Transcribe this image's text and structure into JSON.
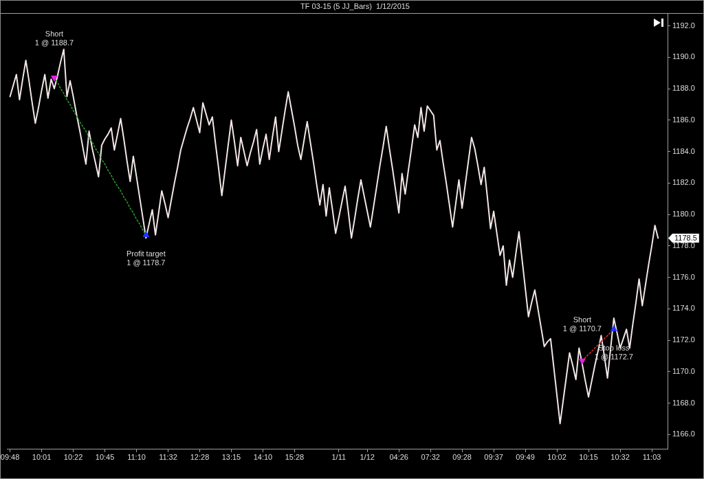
{
  "chart_data": {
    "type": "line",
    "title": "TF 03-15 (5 JJ_Bars)  1/12/2015",
    "categories": [
      null,
      "09:48",
      null,
      null,
      null,
      null,
      null,
      null,
      null,
      null,
      null,
      "10:01",
      null,
      null,
      null,
      null,
      null,
      null,
      null,
      null,
      null,
      "10:22",
      null,
      null,
      null,
      null,
      null,
      null,
      null,
      null,
      null,
      "10:45",
      null,
      null,
      null,
      null,
      null,
      null,
      null,
      null,
      null,
      "11:10",
      null,
      null,
      null,
      null,
      null,
      null,
      null,
      null,
      null,
      "11:32",
      null,
      null,
      null,
      null,
      null,
      null,
      null,
      null,
      null,
      "12:28",
      null,
      null,
      null,
      null,
      null,
      null,
      null,
      null,
      null,
      "13:15",
      null,
      null,
      null,
      null,
      null,
      null,
      null,
      null,
      null,
      "14:10",
      null,
      null,
      null,
      null,
      null,
      null,
      null,
      null,
      null,
      "15:28",
      null,
      null,
      null,
      null,
      null,
      null,
      null,
      null,
      null,
      null,
      null,
      null,
      null,
      "1/11",
      null,
      null,
      null,
      null,
      null,
      null,
      null,
      null,
      "1/12",
      null,
      null,
      null,
      null,
      null,
      null,
      null,
      null,
      null,
      "04:26",
      null,
      null,
      null,
      null,
      null,
      null,
      null,
      null,
      null,
      "07:32",
      null,
      null,
      null,
      null,
      null,
      null,
      null,
      null,
      null,
      "09:28",
      null,
      null,
      null,
      null,
      null,
      null,
      null,
      null,
      null,
      "09:37",
      null,
      null,
      null,
      null,
      null,
      null,
      null,
      null,
      null,
      "09:49",
      null,
      null,
      null,
      null,
      null,
      null,
      null,
      null,
      null,
      "10:02",
      null,
      null,
      null,
      null,
      null,
      null,
      null,
      null,
      null,
      "10:15",
      null,
      null,
      null,
      null,
      null,
      null,
      null,
      null,
      null,
      "10:32",
      null,
      null,
      null,
      null,
      null,
      null,
      null,
      null,
      null,
      "11:03",
      null,
      null,
      null,
      null,
      null
    ],
    "ylim": [
      1165.1,
      1192.8
    ],
    "yticks": [
      {
        "value": 1166,
        "label": "1166.0"
      },
      {
        "value": 1168,
        "label": "1168.0"
      },
      {
        "value": 1170,
        "label": "1170.0"
      },
      {
        "value": 1172,
        "label": "1172.0"
      },
      {
        "value": 1174,
        "label": "1174.0"
      },
      {
        "value": 1176,
        "label": "1176.0"
      },
      {
        "value": 1178,
        "label": "1178.0"
      },
      {
        "value": 1180,
        "label": "1180.0"
      },
      {
        "value": 1182,
        "label": "1182.0"
      },
      {
        "value": 1184,
        "label": "1184.0"
      },
      {
        "value": 1186,
        "label": "1186.0"
      },
      {
        "value": 1188,
        "label": "1188.0"
      },
      {
        "value": 1190,
        "label": "1190.0"
      },
      {
        "value": 1192,
        "label": "1192.0"
      }
    ],
    "grid": false,
    "legend": false,
    "series": [
      {
        "color": "#f3e6e6",
        "marker": "none",
        "values": [
          null,
          1187.5,
          1188.2,
          1188.9,
          1187.3,
          1188.6,
          1189.8,
          1188.5,
          1187.1,
          1185.8,
          1186.8,
          1187.9,
          1188.9,
          1187.4,
          1188.6,
          1188.0,
          1188.8,
          1189.7,
          1190.5,
          1187.5,
          1188.5,
          1187.5,
          1186.4,
          1185.4,
          1184.3,
          1183.2,
          1185.3,
          1184.2,
          1183.3,
          1182.4,
          1184.4,
          1184.8,
          1185.1,
          1185.5,
          1184.1,
          1185.1,
          1186.1,
          1184.8,
          1183.4,
          1182.1,
          1183.7,
          1182.4,
          1181.1,
          1179.8,
          1178.5,
          1179.4,
          1180.3,
          1178.7,
          1180.1,
          1181.5,
          1180.7,
          1179.8,
          1180.9,
          1182.0,
          1183.0,
          1184.1,
          1184.8,
          1185.5,
          1186.1,
          1186.8,
          1186.0,
          1185.2,
          1187.1,
          1186.4,
          1185.7,
          1186.2,
          1184.5,
          1182.9,
          1181.2,
          1182.8,
          1184.4,
          1186.0,
          1184.6,
          1183.1,
          1184.9,
          1184.0,
          1183.1,
          1183.9,
          1184.6,
          1185.4,
          1183.2,
          1184.2,
          1185.1,
          1183.5,
          1184.9,
          1186.2,
          1184.0,
          1185.3,
          1186.6,
          1187.8,
          1186.7,
          1185.6,
          1184.4,
          1183.5,
          1184.7,
          1185.9,
          1184.6,
          1183.3,
          1181.9,
          1180.6,
          1181.9,
          1179.9,
          1181.7,
          1180.3,
          1178.8,
          1179.8,
          1180.8,
          1181.8,
          1180.2,
          1178.5,
          1179.7,
          1181.0,
          1182.2,
          1181.2,
          1180.2,
          1179.2,
          1180.5,
          1181.8,
          1183.1,
          1184.3,
          1185.6,
          1184.2,
          1182.9,
          1181.5,
          1180.1,
          1182.6,
          1181.3,
          1182.8,
          1184.2,
          1185.7,
          1184.9,
          1186.8,
          1185.3,
          1186.9,
          1186.6,
          1186.3,
          1184.1,
          1184.7,
          1183.3,
          1182.0,
          1180.6,
          1179.2,
          1180.7,
          1182.2,
          1180.4,
          1181.9,
          1183.4,
          1184.9,
          1184.2,
          1183.1,
          1181.9,
          1183.0,
          1181.1,
          1179.1,
          1180.2,
          1178.8,
          1177.4,
          1178.0,
          1175.5,
          1177.1,
          1176.0,
          1177.5,
          1178.9,
          1177.1,
          1175.3,
          1173.5,
          1174.4,
          1175.2,
          1174.0,
          1172.8,
          1171.6,
          1171.9,
          1172.1,
          1170.3,
          1168.5,
          1166.7,
          1168.2,
          1169.7,
          1171.2,
          1170.4,
          1169.5,
          1171.5,
          1170.5,
          1169.4,
          1168.4,
          1169.4,
          1170.4,
          1171.3,
          1172.3,
          1171.0,
          1169.6,
          1171.5,
          1173.4,
          1172.5,
          1171.5,
          1172.1,
          1172.7,
          1171.5,
          1173.0,
          1174.4,
          1175.9,
          1174.2,
          1175.5,
          1176.8,
          1178.0,
          1179.3,
          1178.5,
          null,
          null,
          null
        ]
      },
      {
        "type": "line",
        "color": "#2a9a2a",
        "line_style": "dotted",
        "marker": "none",
        "values": [
          null,
          null,
          null,
          null,
          null,
          null,
          null,
          null,
          null,
          null,
          null,
          null,
          null,
          null,
          null,
          1188.7,
          1188.4,
          1188.0,
          1187.7,
          1187.3,
          1187.0,
          1186.6,
          1186.3,
          1185.9,
          1185.6,
          1185.3,
          1184.9,
          1184.6,
          1184.2,
          1183.9,
          1183.5,
          1183.2,
          1182.8,
          1182.5,
          1182.1,
          1181.8,
          1181.5,
          1181.1,
          1180.8,
          1180.4,
          1180.1,
          1179.7,
          1179.4,
          1179.0,
          1178.7,
          null,
          null,
          null,
          null,
          null,
          null,
          null,
          null,
          null,
          null,
          null,
          null,
          null,
          null,
          null,
          null,
          null,
          null,
          null,
          null,
          null,
          null,
          null,
          null,
          null,
          null,
          null,
          null,
          null,
          null,
          null,
          null,
          null,
          null,
          null,
          null,
          null,
          null,
          null,
          null,
          null,
          null,
          null,
          null,
          null,
          null,
          null,
          null,
          null,
          null,
          null,
          null,
          null,
          null,
          null,
          null,
          null,
          null,
          null,
          null,
          null,
          null,
          null,
          null,
          null,
          null,
          null,
          null,
          null,
          null,
          null,
          null,
          null,
          null,
          null,
          null,
          null,
          null,
          null,
          null,
          null,
          null,
          null,
          null,
          null,
          null,
          null,
          null,
          null,
          null,
          null,
          null,
          null,
          null,
          null,
          null,
          null,
          null,
          null,
          null,
          null,
          null,
          null,
          null,
          null,
          null,
          null,
          null,
          null,
          null,
          null,
          null,
          null,
          null,
          null,
          null,
          null,
          null,
          null,
          null,
          null,
          null,
          null,
          null,
          null,
          null,
          null,
          null,
          null,
          null,
          null,
          null,
          null,
          null,
          null,
          null,
          null,
          null,
          null,
          null,
          null,
          null,
          null,
          null,
          null,
          null,
          null,
          null,
          null,
          null,
          null,
          null,
          null,
          null,
          null,
          null,
          null,
          null,
          null,
          null,
          null,
          null,
          null,
          null,
          null
        ]
      },
      {
        "type": "line",
        "color": "#d03030",
        "line_style": "dotted",
        "marker": "none",
        "values": [
          null,
          null,
          null,
          null,
          null,
          null,
          null,
          null,
          null,
          null,
          null,
          null,
          null,
          null,
          null,
          null,
          null,
          null,
          null,
          null,
          null,
          null,
          null,
          null,
          null,
          null,
          null,
          null,
          null,
          null,
          null,
          null,
          null,
          null,
          null,
          null,
          null,
          null,
          null,
          null,
          null,
          null,
          null,
          null,
          null,
          null,
          null,
          null,
          null,
          null,
          null,
          null,
          null,
          null,
          null,
          null,
          null,
          null,
          null,
          null,
          null,
          null,
          null,
          null,
          null,
          null,
          null,
          null,
          null,
          null,
          null,
          null,
          null,
          null,
          null,
          null,
          null,
          null,
          null,
          null,
          null,
          null,
          null,
          null,
          null,
          null,
          null,
          null,
          null,
          null,
          null,
          null,
          null,
          null,
          null,
          null,
          null,
          null,
          null,
          null,
          null,
          null,
          null,
          null,
          null,
          null,
          null,
          null,
          null,
          null,
          null,
          null,
          null,
          null,
          null,
          null,
          null,
          null,
          null,
          null,
          null,
          null,
          null,
          null,
          null,
          null,
          null,
          null,
          null,
          null,
          null,
          null,
          null,
          null,
          null,
          null,
          null,
          null,
          null,
          null,
          null,
          null,
          null,
          null,
          null,
          null,
          null,
          null,
          null,
          null,
          null,
          null,
          null,
          null,
          null,
          null,
          null,
          null,
          null,
          null,
          null,
          null,
          null,
          null,
          null,
          null,
          null,
          null,
          null,
          null,
          null,
          null,
          null,
          null,
          null,
          null,
          null,
          null,
          null,
          null,
          null,
          null,
          1170.7,
          1170.9,
          1171.1,
          1171.3,
          1171.5,
          1171.7,
          1171.9,
          1172.1,
          1172.3,
          1172.5,
          1172.7,
          null,
          null,
          null,
          null,
          null,
          null,
          null,
          null,
          null,
          null,
          null,
          null,
          null,
          null,
          null,
          null,
          null
        ]
      },
      {
        "type": "scatter",
        "color": "#e81ee8",
        "marker": "triangle",
        "values": [
          null,
          null,
          null,
          null,
          null,
          null,
          null,
          null,
          null,
          null,
          null,
          null,
          null,
          null,
          null,
          1188.7,
          null,
          null,
          null,
          null,
          null,
          null,
          null,
          null,
          null,
          null,
          null,
          null,
          null,
          null,
          null,
          null,
          null,
          null,
          null,
          null,
          null,
          null,
          null,
          null,
          null,
          null,
          null,
          null,
          null,
          null,
          null,
          null,
          null,
          null,
          null,
          null,
          null,
          null,
          null,
          null,
          null,
          null,
          null,
          null,
          null,
          null,
          null,
          null,
          null,
          null,
          null,
          null,
          null,
          null,
          null,
          null,
          null,
          null,
          null,
          null,
          null,
          null,
          null,
          null,
          null,
          null,
          null,
          null,
          null,
          null,
          null,
          null,
          null,
          null,
          null,
          null,
          null,
          null,
          null,
          null,
          null,
          null,
          null,
          null,
          null,
          null,
          null,
          null,
          null,
          null,
          null,
          null,
          null,
          null,
          null,
          null,
          null,
          null,
          null,
          null,
          null,
          null,
          null,
          null,
          null,
          null,
          null,
          null,
          null,
          null,
          null,
          null,
          null,
          null,
          null,
          null,
          null,
          null,
          null,
          null,
          null,
          null,
          null,
          null,
          null,
          null,
          null,
          null,
          null,
          null,
          null,
          null,
          null,
          null,
          null,
          null,
          null,
          null,
          null,
          null,
          null,
          null,
          null,
          null,
          null,
          null,
          null,
          null,
          null,
          null,
          null,
          null,
          null,
          null,
          null,
          null,
          null,
          null,
          null,
          null,
          null,
          null,
          null,
          null,
          null,
          null,
          1170.7,
          null,
          null,
          null,
          null,
          null,
          null,
          null,
          null,
          null,
          null,
          null,
          null,
          null,
          null,
          null,
          null,
          null,
          null,
          null,
          null,
          null,
          null,
          null,
          null,
          null,
          null,
          null
        ]
      },
      {
        "type": "scatter",
        "color": "#2233ff",
        "marker": "triangle",
        "values": [
          null,
          null,
          null,
          null,
          null,
          null,
          null,
          null,
          null,
          null,
          null,
          null,
          null,
          null,
          null,
          null,
          null,
          null,
          null,
          null,
          null,
          null,
          null,
          null,
          null,
          null,
          null,
          null,
          null,
          null,
          null,
          null,
          null,
          null,
          null,
          null,
          null,
          null,
          null,
          null,
          null,
          null,
          null,
          null,
          1178.7,
          null,
          null,
          null,
          null,
          null,
          null,
          null,
          null,
          null,
          null,
          null,
          null,
          null,
          null,
          null,
          null,
          null,
          null,
          null,
          null,
          null,
          null,
          null,
          null,
          null,
          null,
          null,
          null,
          null,
          null,
          null,
          null,
          null,
          null,
          null,
          null,
          null,
          null,
          null,
          null,
          null,
          null,
          null,
          null,
          null,
          null,
          null,
          null,
          null,
          null,
          null,
          null,
          null,
          null,
          null,
          null,
          null,
          null,
          null,
          null,
          null,
          null,
          null,
          null,
          null,
          null,
          null,
          null,
          null,
          null,
          null,
          null,
          null,
          null,
          null,
          null,
          null,
          null,
          null,
          null,
          null,
          null,
          null,
          null,
          null,
          null,
          null,
          null,
          null,
          null,
          null,
          null,
          null,
          null,
          null,
          null,
          null,
          null,
          null,
          null,
          null,
          null,
          null,
          null,
          null,
          null,
          null,
          null,
          null,
          null,
          null,
          null,
          null,
          null,
          null,
          null,
          null,
          null,
          null,
          null,
          null,
          null,
          null,
          null,
          null,
          null,
          null,
          null,
          null,
          null,
          null,
          null,
          null,
          null,
          null,
          null,
          null,
          null,
          null,
          null,
          null,
          null,
          null,
          null,
          null,
          null,
          null,
          1172.7,
          null,
          null,
          null,
          null,
          null,
          null,
          null,
          null,
          null,
          null,
          null,
          null,
          null,
          null,
          null,
          null,
          null
        ]
      }
    ],
    "annotations": [
      "Short\n1 @ 1188.7",
      "Profit target\n1 @ 1178.7",
      "Short\n1 @ 1170.7",
      "Stop loss\n1 @ 1172.7",
      "1178.5"
    ]
  }
}
